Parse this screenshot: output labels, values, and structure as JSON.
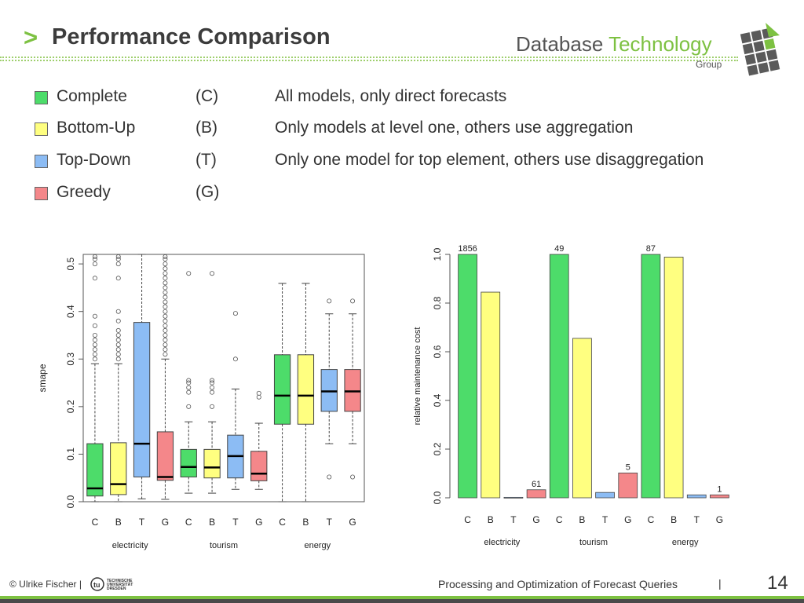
{
  "header": {
    "chevron": ">",
    "title": "Performance Comparison",
    "logo_database": "Database",
    "logo_technology": "Technology",
    "logo_group": "Group"
  },
  "legend": [
    {
      "name": "Complete",
      "code": "(C)",
      "desc": "All models, only direct forecasts",
      "color": "#4ddc6a"
    },
    {
      "name": "Bottom-Up",
      "code": "(B)",
      "desc": "Only models at level one, others use aggregation",
      "color": "#ffff80"
    },
    {
      "name": "Top-Down",
      "code": "(T)",
      "desc": "Only one model for top element, others use disaggregation",
      "color": "#8cbcf4"
    },
    {
      "name": "Greedy",
      "code": "(G)",
      "desc": "",
      "color": "#f4878a"
    }
  ],
  "chart_data": [
    {
      "type": "box",
      "ylabel": "smape",
      "ylim": [
        0,
        0.52
      ],
      "yticks": [
        "0.0",
        "0.1",
        "0.2",
        "0.3",
        "0.4",
        "0.5"
      ],
      "categories": [
        "C",
        "B",
        "T",
        "G",
        "C",
        "B",
        "T",
        "G",
        "C",
        "B",
        "T",
        "G"
      ],
      "groups": [
        "electricity",
        "tourism",
        "energy"
      ],
      "boxes": [
        {
          "cat": "C",
          "group": "electricity",
          "min": 0.0,
          "q1": 0.012,
          "median": 0.028,
          "q3": 0.122,
          "max": 0.29,
          "outliers": [
            0.3,
            0.31,
            0.32,
            0.33,
            0.34,
            0.35,
            0.37,
            0.39,
            0.47,
            0.5,
            0.51,
            0.52
          ]
        },
        {
          "cat": "B",
          "group": "electricity",
          "min": 0.0,
          "q1": 0.015,
          "median": 0.037,
          "q3": 0.124,
          "max": 0.29,
          "outliers": [
            0.3,
            0.31,
            0.32,
            0.33,
            0.34,
            0.35,
            0.36,
            0.38,
            0.4,
            0.47,
            0.5,
            0.51,
            0.52
          ]
        },
        {
          "cat": "T",
          "group": "electricity",
          "min": 0.006,
          "q1": 0.052,
          "median": 0.122,
          "q3": 0.377,
          "max": 0.52,
          "outliers": []
        },
        {
          "cat": "G",
          "group": "electricity",
          "min": 0.005,
          "q1": 0.045,
          "median": 0.052,
          "q3": 0.147,
          "max": 0.3,
          "outliers": [
            0.31,
            0.32,
            0.33,
            0.34,
            0.35,
            0.36,
            0.37,
            0.38,
            0.39,
            0.4,
            0.41,
            0.42,
            0.43,
            0.44,
            0.45,
            0.46,
            0.47,
            0.48,
            0.49,
            0.5,
            0.51,
            0.52
          ]
        },
        {
          "cat": "C",
          "group": "tourism",
          "min": 0.018,
          "q1": 0.052,
          "median": 0.073,
          "q3": 0.11,
          "max": 0.168,
          "outliers": [
            0.2,
            0.23,
            0.24,
            0.25,
            0.255,
            0.48
          ]
        },
        {
          "cat": "B",
          "group": "tourism",
          "min": 0.018,
          "q1": 0.05,
          "median": 0.072,
          "q3": 0.11,
          "max": 0.168,
          "outliers": [
            0.2,
            0.23,
            0.24,
            0.25,
            0.255,
            0.48
          ]
        },
        {
          "cat": "T",
          "group": "tourism",
          "min": 0.026,
          "q1": 0.05,
          "median": 0.096,
          "q3": 0.14,
          "max": 0.237,
          "outliers": [
            0.3,
            0.396
          ]
        },
        {
          "cat": "G",
          "group": "tourism",
          "min": 0.026,
          "q1": 0.044,
          "median": 0.059,
          "q3": 0.106,
          "max": 0.165,
          "outliers": [
            0.22,
            0.228
          ]
        },
        {
          "cat": "C",
          "group": "energy",
          "min": 0.0,
          "q1": 0.163,
          "median": 0.223,
          "q3": 0.309,
          "max": 0.459,
          "outliers": []
        },
        {
          "cat": "B",
          "group": "energy",
          "min": 0.0,
          "q1": 0.163,
          "median": 0.223,
          "q3": 0.309,
          "max": 0.459,
          "outliers": []
        },
        {
          "cat": "T",
          "group": "energy",
          "min": 0.122,
          "q1": 0.19,
          "median": 0.232,
          "q3": 0.278,
          "max": 0.395,
          "outliers": [
            0.052,
            0.422
          ]
        },
        {
          "cat": "G",
          "group": "energy",
          "min": 0.122,
          "q1": 0.19,
          "median": 0.232,
          "q3": 0.278,
          "max": 0.395,
          "outliers": [
            0.052,
            0.422
          ]
        }
      ]
    },
    {
      "type": "bar",
      "ylabel": "relative maintenance cost",
      "ylim": [
        0,
        1.0
      ],
      "yticks": [
        "0.0",
        "0.2",
        "0.4",
        "0.6",
        "0.8",
        "1.0"
      ],
      "categories": [
        "C",
        "B",
        "T",
        "G",
        "C",
        "B",
        "T",
        "G",
        "C",
        "B",
        "T",
        "G"
      ],
      "groups": [
        "electricity",
        "tourism",
        "energy"
      ],
      "values": [
        1.0,
        0.845,
        0.002,
        0.033,
        1.0,
        0.655,
        0.022,
        0.102,
        1.0,
        0.989,
        0.012,
        0.012
      ],
      "bar_labels": [
        "1856",
        "",
        "",
        "61",
        "49",
        "",
        "",
        "5",
        "87",
        "",
        "",
        "1"
      ]
    }
  ],
  "footer": {
    "copyright": "© Ulrike Fischer |",
    "tud_line1": "TECHNISCHE",
    "tud_line2": "UNIVERSITÄT",
    "tud_line3": "DRESDEN",
    "title": "Processing and Optimization of Forecast Queries",
    "separator": "|",
    "page": "14"
  }
}
